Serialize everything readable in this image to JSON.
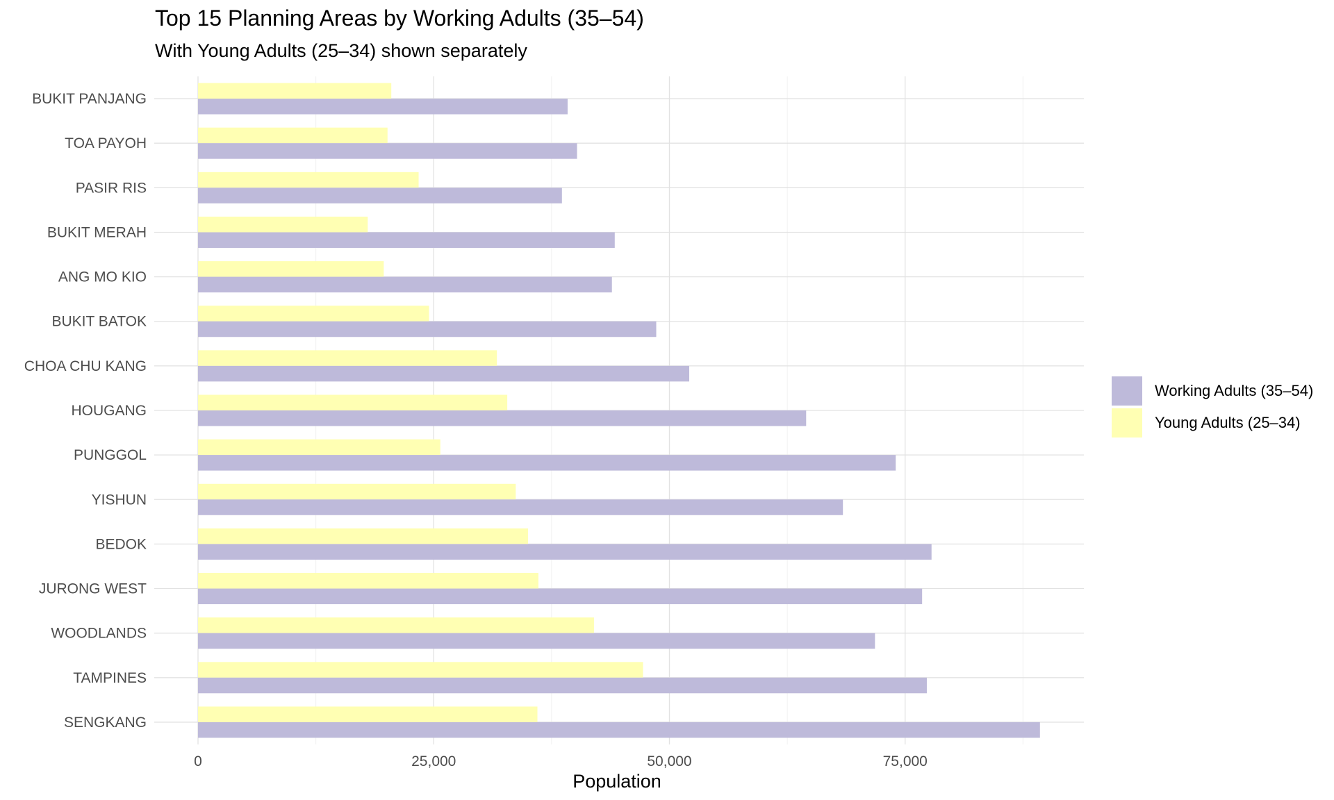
{
  "chart_data": {
    "type": "bar",
    "orientation": "horizontal",
    "title": "Top 15 Planning Areas by Working Adults (35–54)",
    "subtitle": "With Young Adults (25–34) shown separately",
    "xlabel": "Population",
    "ylabel": "",
    "xlim": [
      -3000,
      93750
    ],
    "xticks": [
      0,
      25000,
      50000,
      75000
    ],
    "xtick_labels": [
      "0",
      "25,000",
      "50,000",
      "75,000"
    ],
    "grid": true,
    "legend_position": "right",
    "categories": [
      "BUKIT PANJANG",
      "TOA PAYOH",
      "PASIR RIS",
      "BUKIT MERAH",
      "ANG MO KIO",
      "BUKIT BATOK",
      "CHOA CHU KANG",
      "HOUGANG",
      "PUNGGOL",
      "YISHUN",
      "BEDOK",
      "JURONG WEST",
      "WOODLANDS",
      "TAMPINES",
      "SENGKANG"
    ],
    "series": [
      {
        "name": "Working Adults (35–54)",
        "color": "#bebada",
        "values": [
          39200,
          40200,
          38600,
          44200,
          43900,
          48600,
          52100,
          64500,
          74000,
          68400,
          77800,
          76800,
          71800,
          77300,
          89300
        ]
      },
      {
        "name": "Young Adults (25–34)",
        "color": "#ffffb3",
        "values": [
          20500,
          20100,
          23400,
          18000,
          19700,
          24500,
          31700,
          32800,
          25700,
          33700,
          35000,
          36100,
          42000,
          47200,
          36000
        ]
      }
    ]
  }
}
